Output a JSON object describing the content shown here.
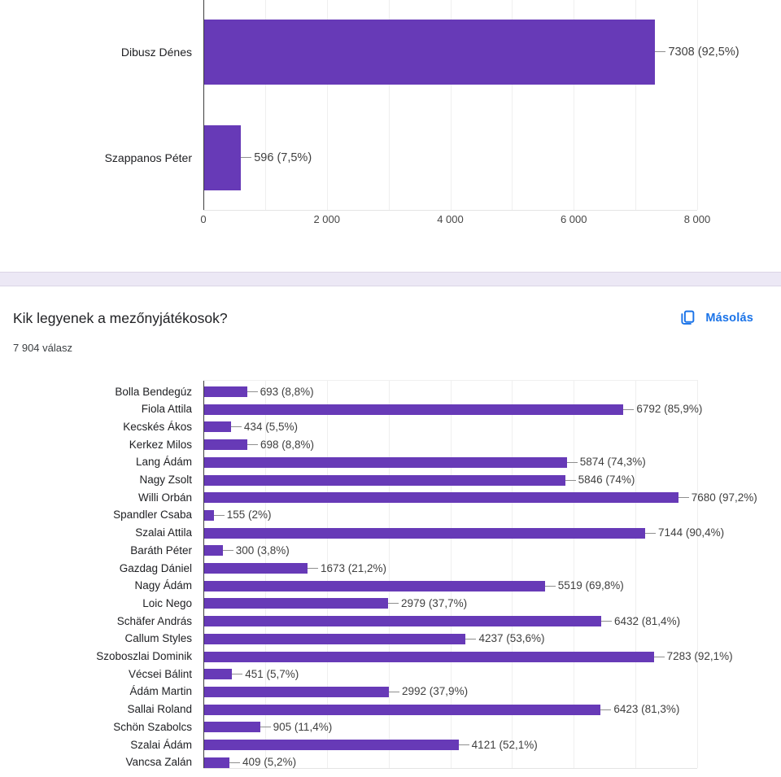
{
  "accent": {
    "bar_color": "#673ab7",
    "link_color": "#1a73e8"
  },
  "question_card": {
    "title": "Kik legyenek a mezőnyjátékosok?",
    "responses_label": "7 904 válasz",
    "copy_button_label": "Másolás",
    "copy_icon": "copy-icon"
  },
  "chart_data": [
    {
      "type": "bar",
      "orientation": "horizontal",
      "note": "top of card cropped by screenshot; goalkeeper question results",
      "categories": [
        "Dibusz Dénes",
        "Szappanos Péter"
      ],
      "values": [
        7308,
        596
      ],
      "labels": [
        "7308 (92,5%)",
        "596 (7,5%)"
      ],
      "xlim": [
        0,
        8000
      ],
      "grid_step": 1000,
      "xtick_values": [
        0,
        2000,
        4000,
        6000,
        8000
      ],
      "xtick_labels": [
        "0",
        "2 000",
        "4 000",
        "6 000",
        "8 000"
      ],
      "legend": "none",
      "grid": "vertical"
    },
    {
      "type": "bar",
      "orientation": "horizontal",
      "title": "Kik legyenek a mezőnyjátékosok?",
      "responses": "7 904 válasz",
      "categories": [
        "Bolla Bendegúz",
        "Fiola Attila",
        "Kecskés Ákos",
        "Kerkez Milos",
        "Lang Ádám",
        "Nagy Zsolt",
        "Willi Orbán",
        "Spandler Csaba",
        "Szalai Attila",
        "Baráth Péter",
        "Gazdag Dániel",
        "Nagy Ádám",
        "Loic Nego",
        "Schäfer András",
        "Callum Styles",
        "Szoboszlai Dominik",
        "Vécsei Bálint",
        "Ádám Martin",
        "Sallai Roland",
        "Schön Szabolcs",
        "Szalai Ádám",
        "Vancsa Zalán"
      ],
      "values": [
        693,
        6792,
        434,
        698,
        5874,
        5846,
        7680,
        155,
        7144,
        300,
        1673,
        5519,
        2979,
        6432,
        4237,
        7283,
        451,
        2992,
        6423,
        905,
        4121,
        409
      ],
      "labels": [
        "693 (8,8%)",
        "6792 (85,9%)",
        "434 (5,5%)",
        "698 (8,8%)",
        "5874 (74,3%)",
        "5846 (74%)",
        "7680 (97,2%)",
        "155 (2%)",
        "7144 (90,4%)",
        "300 (3,8%)",
        "1673 (21,2%)",
        "5519 (69,8%)",
        "2979 (37,7%)",
        "6432 (81,4%)",
        "4237 (53,6%)",
        "7283 (92,1%)",
        "451 (5,7%)",
        "2992 (37,9%)",
        "6423 (81,3%)",
        "905 (11,4%)",
        "4121 (52,1%)",
        "409 (5,2%)"
      ],
      "xlim": [
        0,
        8000
      ],
      "grid_step": 1000,
      "xtick_labels_visible": false,
      "legend": "none",
      "grid": "vertical"
    }
  ]
}
